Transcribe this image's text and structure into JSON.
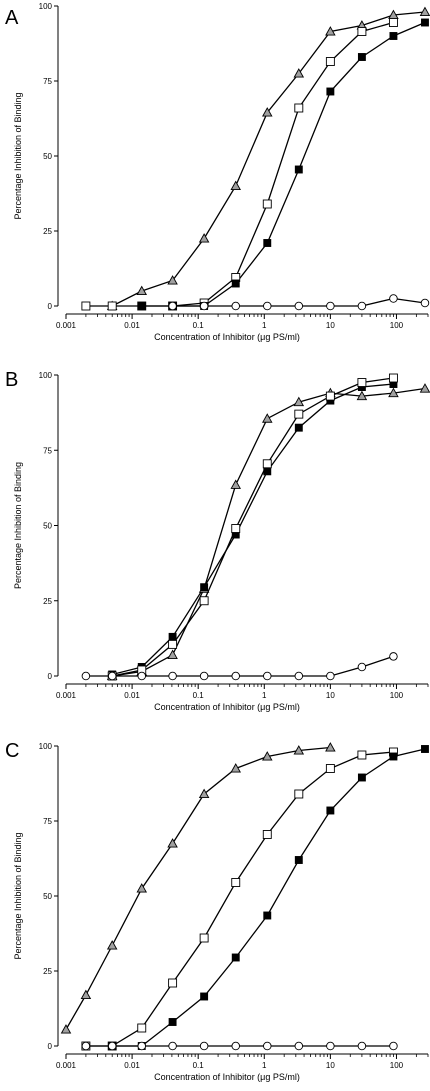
{
  "chart_data": [
    {
      "type": "line",
      "panel_label": "A",
      "xlabel": "Concentration of Inhibitor (μg PS/ml)",
      "ylabel": "Percentage Inhibition of Binding",
      "x_scale": "log",
      "xlim": [
        0.001,
        300
      ],
      "ylim": [
        0,
        100
      ],
      "x_ticks": [
        "0.001",
        "0.01",
        "0.1",
        "1",
        "10",
        "100"
      ],
      "y_ticks": [
        "0",
        "25",
        "50",
        "75",
        "100"
      ],
      "grid": false,
      "series": [
        {
          "marker": "triangle-gray",
          "x": [
            0.005,
            0.014,
            0.041,
            0.123,
            0.37,
            1.11,
            3.33,
            10,
            30,
            90,
            270
          ],
          "y": [
            0,
            5,
            8.5,
            22.5,
            40,
            64.5,
            77.5,
            91.5,
            93.5,
            97,
            98
          ]
        },
        {
          "marker": "square-open",
          "x": [
            0.002,
            0.005,
            0.014,
            0.041,
            0.123,
            0.37,
            1.11,
            3.33,
            10,
            30,
            90
          ],
          "y": [
            0,
            0,
            0,
            0,
            1,
            9.5,
            34,
            66,
            81.5,
            91.5,
            94.5
          ]
        },
        {
          "marker": "square-filled",
          "x": [
            0.014,
            0.041,
            0.123,
            0.37,
            1.11,
            3.33,
            10,
            30,
            90,
            270
          ],
          "y": [
            0,
            0,
            0,
            7.5,
            21,
            45.5,
            71.5,
            83,
            90,
            94.5
          ]
        },
        {
          "marker": "circle-open",
          "x": [
            0.041,
            0.123,
            0.37,
            1.11,
            3.33,
            10,
            30,
            90,
            270
          ],
          "y": [
            0,
            0,
            0,
            0,
            0,
            0,
            0,
            2.5,
            1
          ]
        }
      ]
    },
    {
      "type": "line",
      "panel_label": "B",
      "xlabel": "Concentration of Inhibitor (μg PS/ml)",
      "ylabel": "Percentage Inhibition of Binding",
      "x_scale": "log",
      "xlim": [
        0.001,
        300
      ],
      "ylim": [
        0,
        100
      ],
      "x_ticks": [
        "0.001",
        "0.01",
        "0.1",
        "1",
        "10",
        "100"
      ],
      "y_ticks": [
        "0",
        "25",
        "50",
        "75",
        "100"
      ],
      "grid": false,
      "series": [
        {
          "marker": "triangle-gray",
          "x": [
            0.005,
            0.014,
            0.041,
            0.123,
            0.37,
            1.11,
            3.33,
            10,
            30,
            90,
            270
          ],
          "y": [
            0,
            1.5,
            7,
            29,
            63.5,
            85.5,
            91,
            94,
            93,
            94,
            95.5
          ]
        },
        {
          "marker": "square-filled",
          "x": [
            0.005,
            0.014,
            0.041,
            0.123,
            0.37,
            1.11,
            3.33,
            10,
            30,
            90
          ],
          "y": [
            0.5,
            3,
            13,
            29.5,
            47,
            68,
            82.5,
            91.5,
            96,
            97
          ]
        },
        {
          "marker": "square-open",
          "x": [
            0.005,
            0.014,
            0.041,
            0.123,
            0.37,
            1.11,
            3.33,
            10,
            30,
            90
          ],
          "y": [
            0,
            2,
            10.5,
            25,
            49,
            70.5,
            87,
            93,
            97.5,
            99
          ]
        },
        {
          "marker": "circle-open",
          "x": [
            0.002,
            0.005,
            0.014,
            0.041,
            0.123,
            0.37,
            1.11,
            3.33,
            10,
            30,
            90
          ],
          "y": [
            0,
            0,
            0,
            0,
            0,
            0,
            0,
            0,
            0,
            3,
            6.5
          ]
        }
      ]
    },
    {
      "type": "line",
      "panel_label": "C",
      "xlabel": "Concentration of Inhibitor (μg PS/ml)",
      "ylabel": "Percentage Inhibition of Binding",
      "x_scale": "log",
      "xlim": [
        0.001,
        300
      ],
      "ylim": [
        0,
        100
      ],
      "x_ticks": [
        "0.001",
        "0.01",
        "0.1",
        "1",
        "10",
        "100"
      ],
      "y_ticks": [
        "0",
        "25",
        "50",
        "75",
        "100"
      ],
      "grid": false,
      "series": [
        {
          "marker": "triangle-gray",
          "x": [
            0.001,
            0.002,
            0.005,
            0.014,
            0.041,
            0.123,
            0.37,
            1.11,
            3.33,
            10
          ],
          "y": [
            5.5,
            17,
            33.5,
            52.5,
            67.5,
            84,
            92.5,
            96.5,
            98.5,
            99.5
          ]
        },
        {
          "marker": "square-open",
          "x": [
            0.002,
            0.005,
            0.014,
            0.041,
            0.123,
            0.37,
            1.11,
            3.33,
            10,
            30,
            90
          ],
          "y": [
            0,
            0,
            6,
            21,
            36,
            54.5,
            70.5,
            84,
            92.5,
            97,
            98
          ]
        },
        {
          "marker": "square-filled",
          "x": [
            0.005,
            0.014,
            0.041,
            0.123,
            0.37,
            1.11,
            3.33,
            10,
            30,
            90,
            270
          ],
          "y": [
            0,
            0,
            8,
            16.5,
            29.5,
            43.5,
            62,
            78.5,
            89.5,
            96.5,
            99
          ]
        },
        {
          "marker": "circle-open",
          "x": [
            0.002,
            0.005,
            0.014,
            0.041,
            0.123,
            0.37,
            1.11,
            3.33,
            10,
            30,
            90
          ],
          "y": [
            0,
            0,
            0,
            0,
            0,
            0,
            0,
            0,
            0,
            0,
            0
          ]
        }
      ]
    }
  ],
  "colors": {
    "axis": "#000000",
    "line": "#000000",
    "triangle_fill": "#a0a0a0",
    "open_fill": "#ffffff",
    "filled": "#000000"
  }
}
